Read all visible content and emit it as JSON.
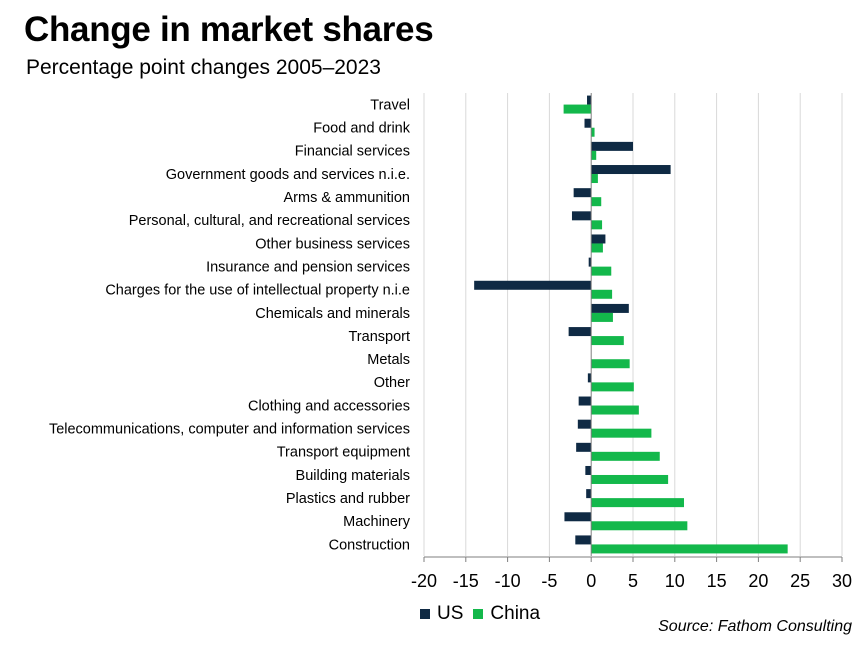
{
  "title": "Change in market shares",
  "subtitle": "Percentage point changes 2005–2023",
  "source": "Source: Fathom Consulting",
  "colors": {
    "US": "#0f2a44",
    "China": "#13b84b",
    "grid": "#d9d9d9",
    "axis": "#7f7f7f"
  },
  "legend": {
    "us_label": "US",
    "china_label": "China"
  },
  "chart_data": {
    "type": "bar",
    "orientation": "horizontal",
    "title": "Change in market shares",
    "subtitle": "Percentage point changes 2005–2023",
    "xlabel": "",
    "ylabel": "",
    "xlim": [
      -20,
      30
    ],
    "xticks": [
      -20,
      -15,
      -10,
      -5,
      0,
      5,
      10,
      15,
      20,
      25,
      30
    ],
    "grid": true,
    "legend_position": "bottom-left",
    "categories": [
      "Travel",
      "Food and drink",
      "Financial services",
      "Government goods and services n.i.e.",
      "Arms & ammunition",
      "Personal, cultural, and recreational services",
      "Other business services",
      "Insurance and pension services",
      "Charges for the use of intellectual property n.i.e",
      "Chemicals and minerals",
      "Transport",
      "Metals",
      "Other",
      "Clothing and accessories",
      "Telecommunications, computer and information services",
      "Transport equipment",
      "Building materials",
      "Plastics and rubber",
      "Machinery",
      "Construction"
    ],
    "series": [
      {
        "name": "US",
        "values": [
          -0.5,
          -0.8,
          5.0,
          9.5,
          -2.1,
          -2.3,
          1.7,
          -0.3,
          -14.0,
          4.5,
          -2.7,
          0.0,
          -0.4,
          -1.5,
          -1.6,
          -1.8,
          -0.7,
          -0.6,
          -3.2,
          -1.9
        ]
      },
      {
        "name": "China",
        "values": [
          -3.3,
          0.4,
          0.6,
          0.8,
          1.2,
          1.3,
          1.4,
          2.4,
          2.5,
          2.6,
          3.9,
          4.6,
          5.1,
          5.7,
          7.2,
          8.2,
          9.2,
          11.1,
          11.5,
          23.5
        ]
      }
    ]
  }
}
